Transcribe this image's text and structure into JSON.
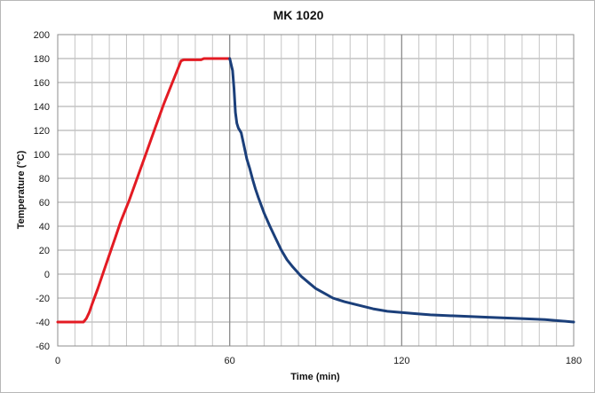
{
  "chart_data": {
    "type": "line",
    "title": "MK 1020",
    "xlabel": "Time (min)",
    "ylabel": "Temperature (°C)",
    "xlim": [
      0,
      180
    ],
    "ylim": [
      -60,
      200
    ],
    "x_ticks": [
      0,
      60,
      120,
      180
    ],
    "y_ticks": [
      -60,
      -40,
      -20,
      0,
      20,
      40,
      60,
      80,
      100,
      120,
      140,
      160,
      180,
      200
    ],
    "grid": true,
    "minor_x_gridlines_every": 6,
    "major_x_gridlines_every": 60,
    "legend": "none",
    "series": [
      {
        "color": "#e31b23",
        "x": [
          0,
          9,
          10,
          11,
          12,
          14,
          16,
          18,
          20,
          22,
          25,
          28,
          31,
          34,
          37,
          40,
          42,
          43,
          44,
          45,
          47,
          49,
          50,
          51,
          53,
          55,
          57,
          60
        ],
        "y": [
          -40,
          -40,
          -37,
          -32,
          -25,
          -12,
          2,
          16,
          30,
          44,
          62,
          82,
          102,
          122,
          142,
          160,
          172,
          178,
          179,
          179,
          179,
          179,
          179,
          180,
          180,
          180,
          180,
          180
        ]
      },
      {
        "color": "#1b3f7a",
        "x": [
          60,
          61,
          61.5,
          62,
          62.5,
          63,
          64,
          65,
          66,
          67,
          68,
          69,
          70,
          72,
          74,
          76,
          78,
          80,
          82,
          85,
          88,
          90,
          93,
          96,
          100,
          105,
          110,
          115,
          120,
          125,
          130,
          140,
          150,
          160,
          170,
          175,
          180
        ],
        "y": [
          180,
          170,
          155,
          135,
          126,
          122,
          118,
          107,
          96,
          88,
          79,
          71,
          64,
          51,
          40,
          30,
          20,
          12,
          6,
          -2,
          -8,
          -12,
          -16,
          -20,
          -23,
          -26,
          -29,
          -31,
          -32,
          -33,
          -34,
          -35,
          -36,
          -37,
          -38,
          -39,
          -40
        ]
      }
    ]
  }
}
